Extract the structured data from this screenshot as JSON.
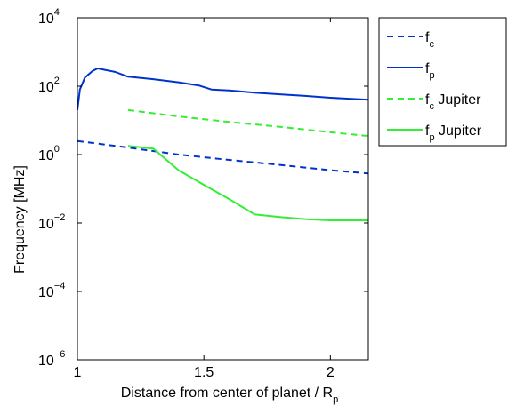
{
  "chart_data": {
    "type": "line",
    "xlabel": "Distance from center of planet / R",
    "xlabel_sub": "p",
    "ylabel": "Frequency [MHz]",
    "xlim": [
      1,
      2.15
    ],
    "ylim": [
      1e-06,
      10000.0
    ],
    "y_scale": "log",
    "grid": false,
    "legend_position": "outside-right-top",
    "x_ticks": [
      {
        "value": 1,
        "label": "1"
      },
      {
        "value": 1.5,
        "label": "1.5"
      },
      {
        "value": 2,
        "label": "2"
      }
    ],
    "y_ticks": [
      {
        "value": 10000.0,
        "base": "10",
        "exp": "4"
      },
      {
        "value": 100.0,
        "base": "10",
        "exp": "2"
      },
      {
        "value": 1,
        "base": "10",
        "exp": "0"
      },
      {
        "value": 0.01,
        "base": "10",
        "exp": "−2"
      },
      {
        "value": 0.0001,
        "base": "10",
        "exp": "−4"
      },
      {
        "value": 1e-06,
        "base": "10",
        "exp": "−6"
      }
    ],
    "series": [
      {
        "name": "f",
        "name_sub": "c",
        "name_suffix": "",
        "color": "#0033cc",
        "dash": "dashed",
        "x": [
          1.0,
          1.2,
          1.4,
          1.6,
          1.8,
          2.0,
          2.15
        ],
        "y": [
          2.5,
          1.6,
          1.0,
          0.7,
          0.5,
          0.35,
          0.28
        ]
      },
      {
        "name": "f",
        "name_sub": "p",
        "name_suffix": "",
        "color": "#0033cc",
        "dash": "solid",
        "x": [
          1.0,
          1.01,
          1.03,
          1.06,
          1.08,
          1.1,
          1.15,
          1.2,
          1.3,
          1.4,
          1.48,
          1.53,
          1.6,
          1.7,
          1.8,
          1.9,
          2.0,
          2.1,
          2.15
        ],
        "y": [
          20,
          80,
          180,
          280,
          330,
          310,
          260,
          190,
          160,
          130,
          105,
          80,
          75,
          65,
          58,
          52,
          46,
          42,
          40
        ]
      },
      {
        "name": "f",
        "name_sub": "c",
        "name_suffix": " Jupiter",
        "color": "#33ee33",
        "dash": "dashed",
        "x": [
          1.2,
          1.4,
          1.6,
          1.8,
          2.0,
          2.15
        ],
        "y": [
          20,
          13,
          9,
          6.5,
          4.5,
          3.5
        ]
      },
      {
        "name": "f",
        "name_sub": "p",
        "name_suffix": " Jupiter",
        "color": "#33ee33",
        "dash": "solid",
        "x": [
          1.2,
          1.3,
          1.4,
          1.5,
          1.6,
          1.7,
          1.8,
          1.9,
          2.0,
          2.15
        ],
        "y": [
          1.8,
          1.5,
          0.35,
          0.13,
          0.05,
          0.018,
          0.015,
          0.013,
          0.012,
          0.012
        ]
      }
    ]
  }
}
